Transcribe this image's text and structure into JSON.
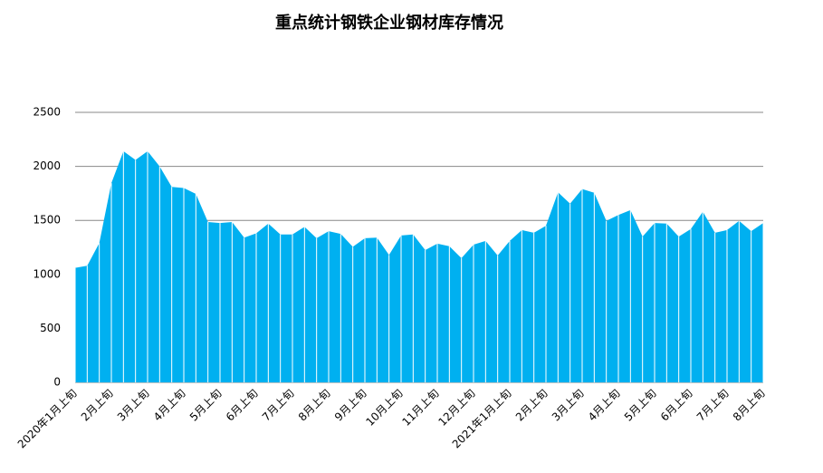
{
  "chart_data": {
    "type": "area",
    "title": "重点统计钢铁企业钢材库存情况",
    "categories": [
      "2020年1月上旬",
      null,
      null,
      "2月上旬",
      null,
      null,
      "3月上旬",
      null,
      null,
      "4月上旬",
      null,
      null,
      "5月上旬",
      null,
      null,
      "6月上旬",
      null,
      null,
      "7月上旬",
      null,
      null,
      "8月上旬",
      null,
      null,
      "9月上旬",
      null,
      null,
      "10月上旬",
      null,
      null,
      "11月上旬",
      null,
      null,
      "12月上旬",
      null,
      null,
      "2021年1月上旬",
      null,
      null,
      "2月上旬",
      null,
      null,
      "3月上旬",
      null,
      null,
      "4月上旬",
      null,
      null,
      "5月上旬",
      null,
      null,
      "6月上旬",
      null,
      null,
      "7月上旬",
      null,
      null,
      "8月上旬"
    ],
    "values": [
      1060,
      1080,
      1290,
      1845,
      2140,
      2060,
      2140,
      2000,
      1810,
      1800,
      1745,
      1485,
      1475,
      1485,
      1340,
      1380,
      1470,
      1370,
      1370,
      1440,
      1335,
      1400,
      1375,
      1255,
      1335,
      1340,
      1180,
      1360,
      1370,
      1225,
      1285,
      1260,
      1150,
      1275,
      1310,
      1175,
      1310,
      1410,
      1385,
      1450,
      1760,
      1655,
      1790,
      1755,
      1495,
      1550,
      1595,
      1350,
      1475,
      1470,
      1350,
      1420,
      1580,
      1385,
      1410,
      1495,
      1400,
      1475
    ],
    "color": "#00b0f0",
    "ylim": [
      0,
      2500
    ],
    "yticks": [
      0,
      500,
      1000,
      1500,
      2000,
      2500
    ],
    "grid": true
  }
}
